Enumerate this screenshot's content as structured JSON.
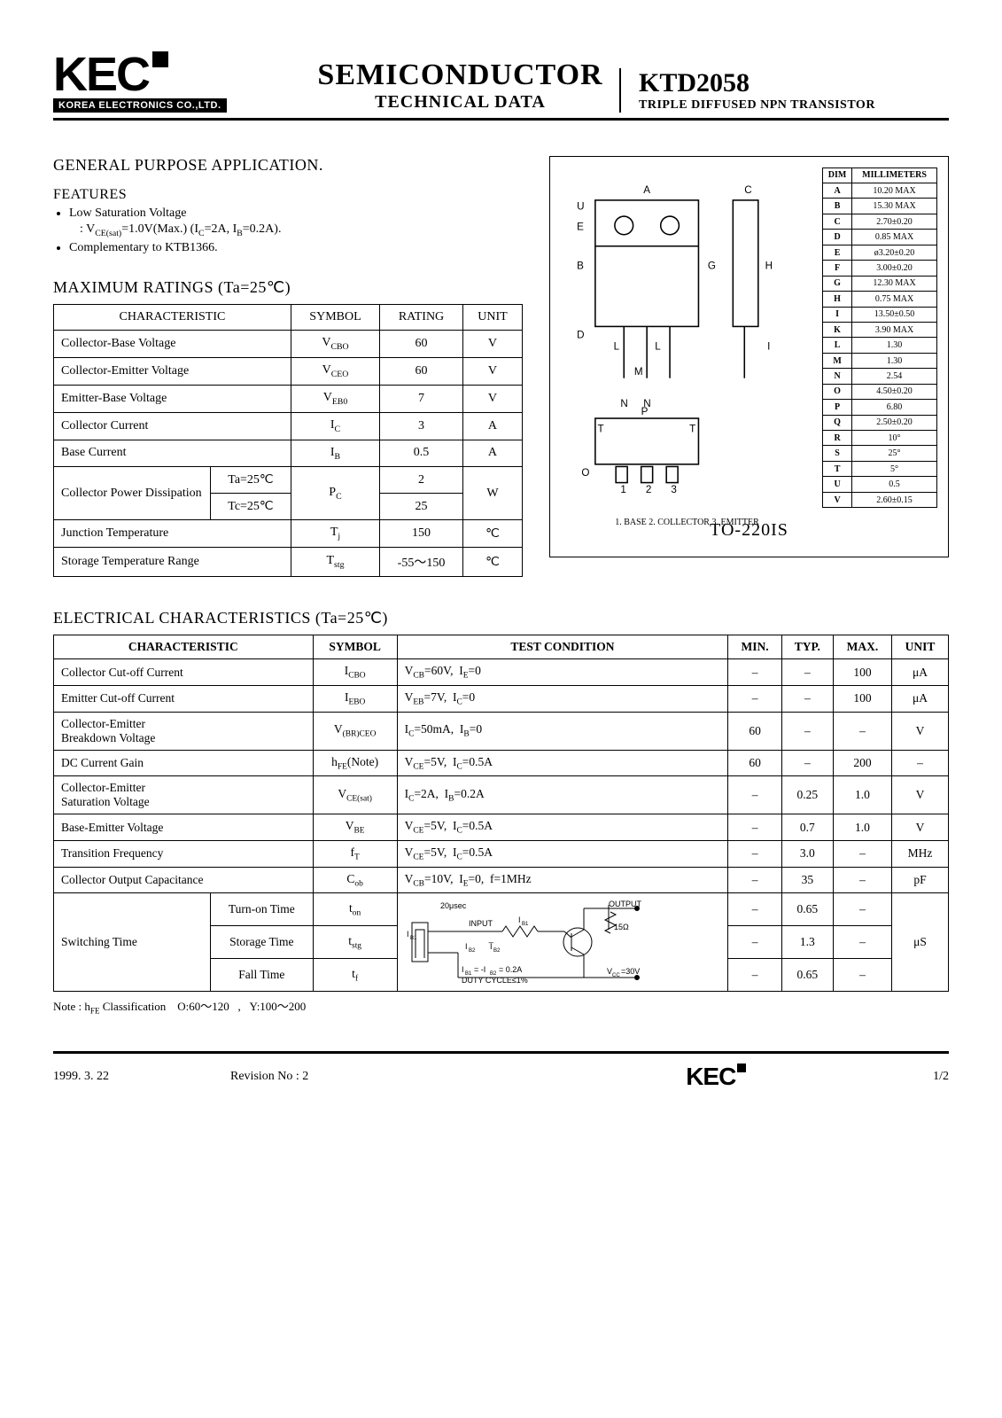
{
  "header": {
    "logo_main": "KEC",
    "logo_sub": "KOREA ELECTRONICS CO.,LTD.",
    "mid_line1": "SEMICONDUCTOR",
    "mid_line2": "TECHNICAL DATA",
    "part_no": "KTD2058",
    "part_desc": "TRIPLE DIFFUSED NPN TRANSISTOR"
  },
  "app_title": "GENERAL PURPOSE APPLICATION.",
  "features_title": "FEATURES",
  "features": [
    "Low Saturation Voltage",
    "Complementary to KTB1366."
  ],
  "feature1_sub": ": Vₑₑ(sat)=1.0V(Max.) (Ic=2A, Ib=0.2A).",
  "ratings": {
    "title": "MAXIMUM RATINGS (Ta=25℃)",
    "head": [
      "CHARACTERISTIC",
      "SYMBOL",
      "RATING",
      "UNIT"
    ],
    "rows": [
      {
        "char": "Collector-Base Voltage",
        "sym": "VCBO",
        "sym_sub": "CBO",
        "rating": "60",
        "unit": "V",
        "char2": null
      },
      {
        "char": "Collector-Emitter Voltage",
        "sym_sub": "CEO",
        "rating": "60",
        "unit": "V"
      },
      {
        "char": "Emitter-Base Voltage",
        "sym_sub": "EB0",
        "rating": "7",
        "unit": "V"
      },
      {
        "char": "Collector Current",
        "sym_sub": "C",
        "sym_base": "I",
        "rating": "3",
        "unit": "A"
      },
      {
        "char": "Base Current",
        "sym_sub": "B",
        "sym_base": "I",
        "rating": "0.5",
        "unit": "A"
      }
    ],
    "power": {
      "char": "Collector Power Dissipation",
      "ta": "Ta=25℃",
      "ta_rating": "2",
      "tc": "Tc=25℃",
      "tc_rating": "25",
      "sym_base": "P",
      "sym_sub": "C",
      "unit": "W"
    },
    "junction": {
      "char": "Junction Temperature",
      "sym_base": "T",
      "sym_sub": "j",
      "rating": "150",
      "unit": "℃"
    },
    "storage": {
      "char": "Storage Temperature Range",
      "sym_base": "T",
      "sym_sub": "stg",
      "rating": "-55～150",
      "unit": "℃"
    }
  },
  "package": {
    "label": "TO-220IS",
    "pins": "1. BASE   2. COLLECTOR   3. EMITTER",
    "dim_head": [
      "DIM",
      "MILLIMETERS"
    ],
    "dims": [
      [
        "A",
        "10.20 MAX"
      ],
      [
        "B",
        "15.30 MAX"
      ],
      [
        "C",
        "2.70±0.20"
      ],
      [
        "D",
        "0.85 MAX"
      ],
      [
        "E",
        "ø3.20±0.20"
      ],
      [
        "F",
        "3.00±0.20"
      ],
      [
        "G",
        "12.30 MAX"
      ],
      [
        "H",
        "0.75 MAX"
      ],
      [
        "I",
        "13.50±0.50"
      ],
      [
        "K",
        "3.90 MAX"
      ],
      [
        "L",
        "1.30"
      ],
      [
        "M",
        "1.30"
      ],
      [
        "N",
        "2.54"
      ],
      [
        "O",
        "4.50±0.20"
      ],
      [
        "P",
        "6.80"
      ],
      [
        "Q",
        "2.50±0.20"
      ],
      [
        "R",
        "10°"
      ],
      [
        "S",
        "25°"
      ],
      [
        "T",
        "5°"
      ],
      [
        "U",
        "0.5"
      ],
      [
        "V",
        "2.60±0.15"
      ]
    ]
  },
  "elec": {
    "title": "ELECTRICAL CHARACTERISTICS (Ta=25℃)",
    "head": [
      "CHARACTERISTIC",
      "SYMBOL",
      "TEST CONDITION",
      "MIN.",
      "TYP.",
      "MAX.",
      "UNIT"
    ],
    "rows": [
      {
        "char": "Collector Cut-off Current",
        "sym": "I",
        "sub": "CBO",
        "cond": "V_CB=60V,  I_E=0",
        "min": "–",
        "typ": "–",
        "max": "100",
        "unit": "μA"
      },
      {
        "char": "Emitter Cut-off Current",
        "sym": "I",
        "sub": "EBO",
        "cond": "V_EB=7V,  I_C=0",
        "min": "–",
        "typ": "–",
        "max": "100",
        "unit": "μA"
      },
      {
        "char": "Collector-Emitter Breakdown Voltage",
        "sym": "V",
        "sub": "(BR)CEO",
        "cond": "I_C=50mA,  I_B=0",
        "min": "60",
        "typ": "–",
        "max": "–",
        "unit": "V"
      },
      {
        "char": "DC Current Gain",
        "sym": "h",
        "sub": "FE",
        "note": "(Note)",
        "cond": "V_CE=5V,  I_C=0.5A",
        "min": "60",
        "typ": "–",
        "max": "200",
        "unit": "–"
      },
      {
        "char": "Collector-Emitter Saturation Voltage",
        "sym": "V",
        "sub": "CE(sat)",
        "cond": "I_C=2A,  I_B=0.2A",
        "min": "–",
        "typ": "0.25",
        "max": "1.0",
        "unit": "V"
      },
      {
        "char": "Base-Emitter Voltage",
        "sym": "V",
        "sub": "BE",
        "cond": "V_CE=5V,  I_C=0.5A",
        "min": "–",
        "typ": "0.7",
        "max": "1.0",
        "unit": "V"
      },
      {
        "char": "Transition Frequency",
        "sym": "f",
        "sub": "T",
        "cond": "V_CE=5V,  I_C=0.5A",
        "min": "–",
        "typ": "3.0",
        "max": "–",
        "unit": "MHz"
      },
      {
        "char": "Collector Output Capacitance",
        "sym": "C",
        "sub": "ob",
        "cond": "V_CB=10V,  I_E=0,  f=1MHz",
        "min": "–",
        "typ": "35",
        "max": "–",
        "unit": "pF"
      }
    ],
    "switching": {
      "char": "Switching Time",
      "rows": [
        {
          "sub_char": "Turn-on Time",
          "sym": "t",
          "sub": "on",
          "min": "–",
          "typ": "0.65",
          "max": "–"
        },
        {
          "sub_char": "Storage Time",
          "sym": "t",
          "sub": "stg",
          "min": "–",
          "typ": "1.3",
          "max": "–"
        },
        {
          "sub_char": "Fall Time",
          "sym": "t",
          "sub": "f",
          "min": "–",
          "typ": "0.65",
          "max": "–"
        }
      ],
      "unit": "μS",
      "circuit_line1": "20μsec           OUTPUT",
      "circuit_line2": "I_B1  INPUT  I_B1   15Ω",
      "circuit_line3": "      I_B2  I_B2",
      "circuit_line4": "I_B1 = -I_B2 = 0.2A     V_CC = 30V",
      "circuit_line5": "DUTY CYCLE ≤ 1%"
    }
  },
  "note": "Note : h_FE Classification     O:60～120    ,    Y:100～200",
  "footer": {
    "date": "1999. 3. 22",
    "rev": "Revision No : 2",
    "logo": "KEC",
    "page": "1/2"
  }
}
